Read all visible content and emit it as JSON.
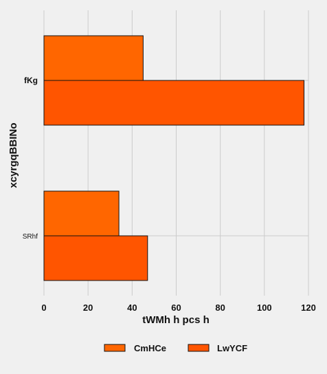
{
  "chart_data": {
    "type": "bar",
    "orientation": "horizontal",
    "categories": [
      "fKg",
      "SRhf"
    ],
    "series": [
      {
        "name": "CmHCe",
        "values": [
          45,
          34
        ],
        "color": "#ff6600"
      },
      {
        "name": "LwYCF",
        "values": [
          118,
          47
        ],
        "color": "#ff5500"
      }
    ],
    "xlabel": "tWMh h pcs h",
    "ylabel": "xcyrgqBBINo",
    "xlim": [
      0,
      120
    ],
    "xticks": [
      0,
      20,
      40,
      60,
      80,
      100,
      120
    ],
    "grid": true,
    "legend_position": "bottom-center",
    "background": "#f0f0f0",
    "grid_color": "#cbcbcb",
    "edge_color": "#111111"
  }
}
